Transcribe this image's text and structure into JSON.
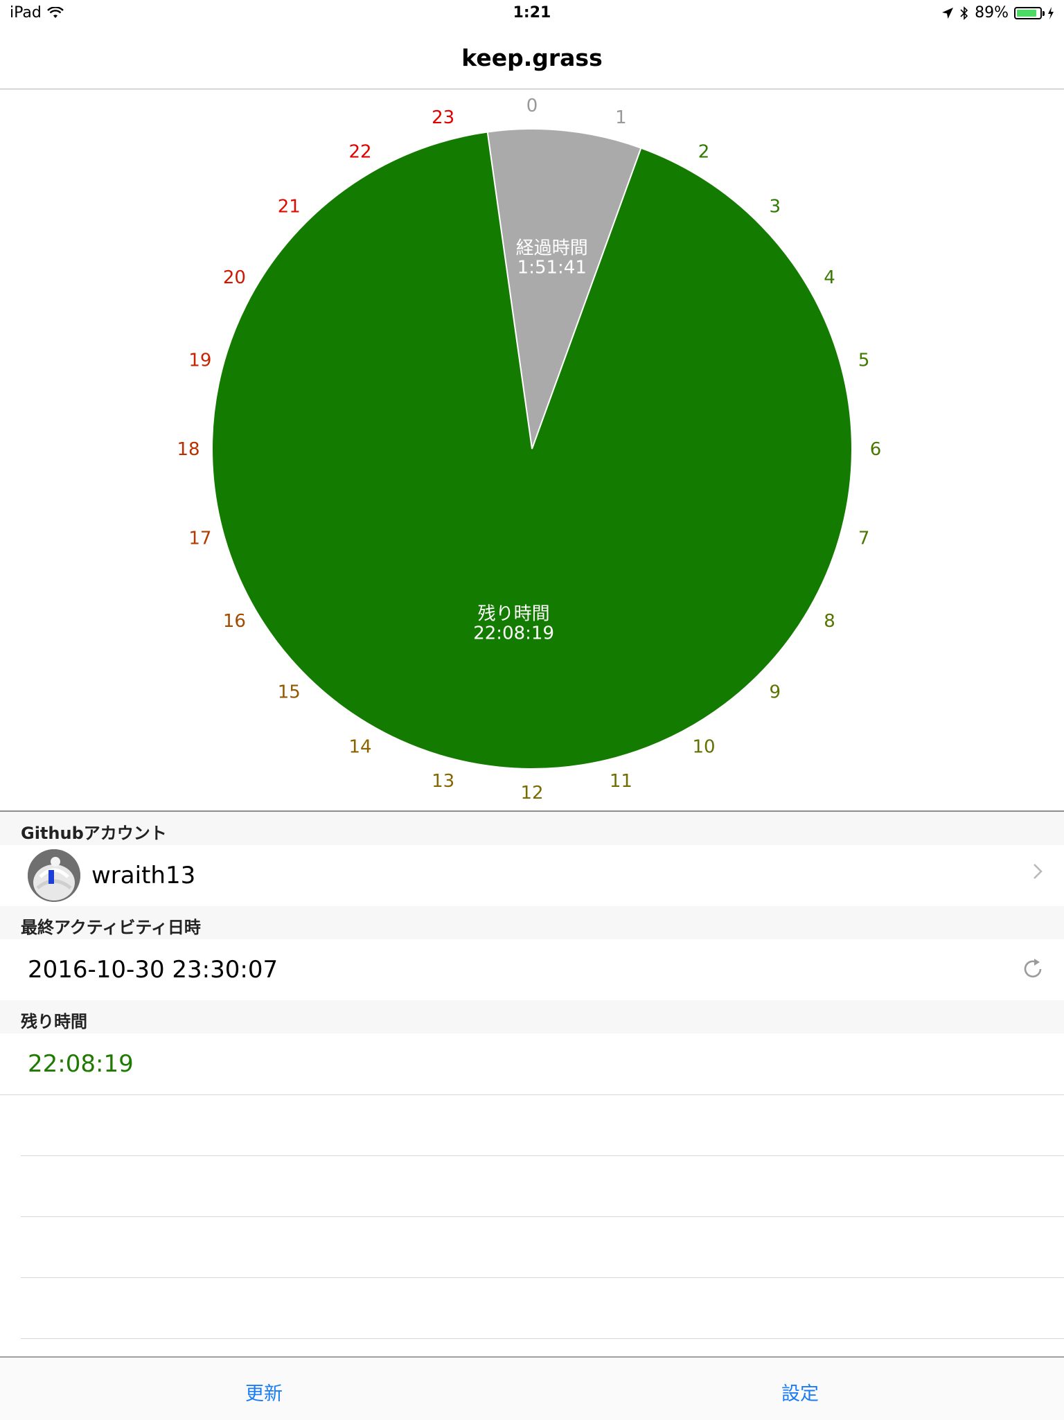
{
  "status_bar": {
    "device": "iPad",
    "time": "1:21",
    "battery_percent": "89%",
    "battery_level": 0.89
  },
  "nav": {
    "title": "keep.grass"
  },
  "chart_data": {
    "type": "pie",
    "slices": [
      {
        "label": "経過時間",
        "value": "1:51:41",
        "hours": 1.8614,
        "color": "#aaaaaa"
      },
      {
        "label": "残り時間",
        "value": "22:08:19",
        "hours": 22.1386,
        "color": "#137c00"
      }
    ],
    "hour_ticks": [
      "0",
      "1",
      "2",
      "3",
      "4",
      "5",
      "6",
      "7",
      "8",
      "9",
      "10",
      "11",
      "12",
      "13",
      "14",
      "15",
      "16",
      "17",
      "18",
      "19",
      "20",
      "21",
      "22",
      "23"
    ],
    "hour_colors": [
      "#999999",
      "#999999",
      "#2f7a00",
      "#2f7a00",
      "#3a7a00",
      "#3f7a00",
      "#467800",
      "#4c7700",
      "#557500",
      "#5c7300",
      "#647100",
      "#6d6f00",
      "#786c00",
      "#826800",
      "#8b6200",
      "#945900",
      "#a24b00",
      "#b03e00",
      "#bb3000",
      "#c72400",
      "#d21700",
      "#de0b00",
      "#e50000",
      "#e50000"
    ]
  },
  "table": {
    "sections": [
      {
        "header": "Githubアカウント",
        "username": "wraith13"
      },
      {
        "header": "最終アクティビティ日時",
        "value": "2016-10-30 23:30:07"
      },
      {
        "header": "残り時間",
        "value": "22:08:19"
      }
    ]
  },
  "tabs": {
    "left": "更新",
    "right": "設定"
  },
  "icons": {
    "wifi": "wifi-icon",
    "location": "location-arrow-icon",
    "bluetooth": "bluetooth-icon",
    "chevron": "chevron-right-icon",
    "refresh": "refresh-icon"
  }
}
